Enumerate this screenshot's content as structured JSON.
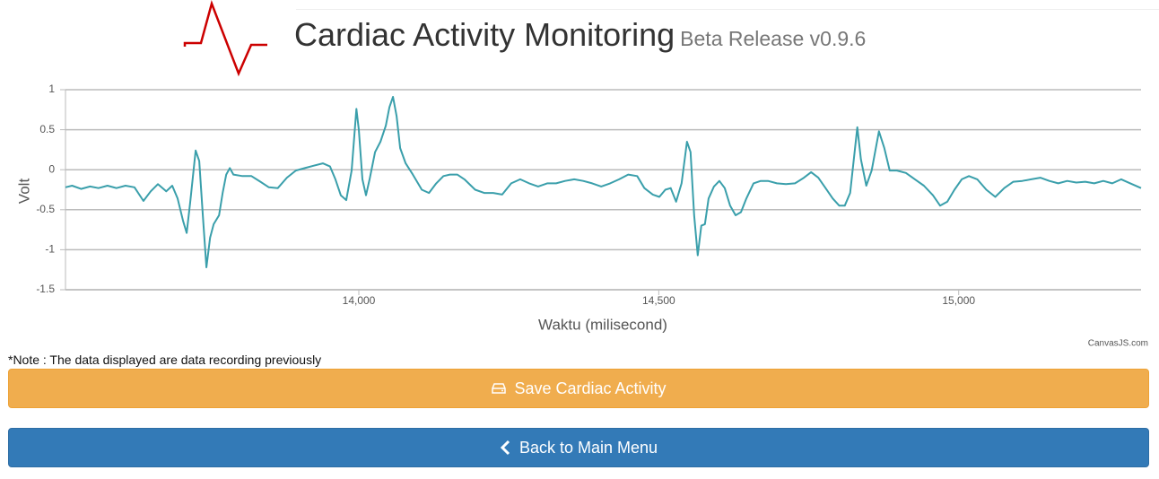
{
  "header": {
    "title": "Cardiac Activity Monitoring",
    "subtitle": "Beta Release v0.9.6"
  },
  "chart_data": {
    "type": "line",
    "y_label": "Volt",
    "x_label": "Waktu (milisecond)",
    "credit": "CanvasJS.com",
    "color": "#3a9fab",
    "grid": true,
    "xlim": [
      13511,
      15304
    ],
    "ylim": [
      -1.5,
      1
    ],
    "xticks": [
      {
        "value": 14000,
        "label": "14,000"
      },
      {
        "value": 14500,
        "label": "14,500"
      },
      {
        "value": 15000,
        "label": "15,000"
      }
    ],
    "yticks": [
      -1.5,
      -1,
      -0.5,
      0,
      0.5,
      1
    ],
    "x": [
      13511,
      13522,
      13537,
      13552,
      13566,
      13581,
      13596,
      13611,
      13626,
      13641,
      13653,
      13665,
      13679,
      13689,
      13698,
      13707,
      13713,
      13719,
      13728,
      13734,
      13740,
      13746,
      13752,
      13758,
      13767,
      13773,
      13779,
      13785,
      13791,
      13806,
      13821,
      13836,
      13850,
      13865,
      13880,
      13895,
      13910,
      13925,
      13940,
      13952,
      13961,
      13970,
      13979,
      13988,
      13996,
      14000,
      14006,
      14012,
      14018,
      14027,
      14036,
      14045,
      14051,
      14057,
      14063,
      14069,
      14078,
      14090,
      14105,
      14117,
      14129,
      14141,
      14152,
      14164,
      14176,
      14194,
      14209,
      14224,
      14239,
      14254,
      14269,
      14284,
      14299,
      14314,
      14329,
      14344,
      14359,
      14374,
      14389,
      14404,
      14419,
      14434,
      14449,
      14464,
      14476,
      14490,
      14501,
      14511,
      14520,
      14529,
      14538,
      14547,
      14553,
      14559,
      14565,
      14571,
      14577,
      14583,
      14592,
      14601,
      14610,
      14619,
      14628,
      14637,
      14646,
      14658,
      14670,
      14682,
      14697,
      14712,
      14727,
      14742,
      14754,
      14766,
      14778,
      14790,
      14801,
      14810,
      14819,
      14831,
      14837,
      14846,
      14855,
      14867,
      14876,
      14885,
      14897,
      14912,
      14927,
      14942,
      14957,
      14969,
      14981,
      14993,
      15005,
      15017,
      15031,
      15046,
      15061,
      15076,
      15091,
      15106,
      15121,
      15136,
      15151,
      15166,
      15181,
      15196,
      15211,
      15226,
      15241,
      15256,
      15271,
      15286,
      15304
    ],
    "values": [
      -0.22,
      -0.2,
      -0.24,
      -0.21,
      -0.23,
      -0.2,
      -0.23,
      -0.2,
      -0.22,
      -0.39,
      -0.27,
      -0.18,
      -0.27,
      -0.2,
      -0.36,
      -0.64,
      -0.79,
      -0.4,
      0.24,
      0.11,
      -0.57,
      -1.22,
      -0.85,
      -0.68,
      -0.57,
      -0.29,
      -0.06,
      0.02,
      -0.06,
      -0.08,
      -0.08,
      -0.15,
      -0.22,
      -0.23,
      -0.1,
      -0.01,
      0.02,
      0.05,
      0.08,
      0.04,
      -0.12,
      -0.32,
      -0.38,
      -0.01,
      0.76,
      0.5,
      -0.12,
      -0.32,
      -0.12,
      0.22,
      0.35,
      0.55,
      0.78,
      0.91,
      0.67,
      0.27,
      0.08,
      -0.06,
      -0.25,
      -0.29,
      -0.17,
      -0.08,
      -0.06,
      -0.06,
      -0.12,
      -0.25,
      -0.29,
      -0.29,
      -0.31,
      -0.17,
      -0.12,
      -0.17,
      -0.21,
      -0.17,
      -0.17,
      -0.14,
      -0.12,
      -0.14,
      -0.17,
      -0.21,
      -0.17,
      -0.12,
      -0.06,
      -0.08,
      -0.23,
      -0.31,
      -0.34,
      -0.25,
      -0.23,
      -0.4,
      -0.17,
      0.35,
      0.22,
      -0.57,
      -1.07,
      -0.7,
      -0.68,
      -0.36,
      -0.21,
      -0.14,
      -0.23,
      -0.45,
      -0.57,
      -0.53,
      -0.36,
      -0.17,
      -0.14,
      -0.14,
      -0.17,
      -0.18,
      -0.17,
      -0.1,
      -0.03,
      -0.1,
      -0.23,
      -0.36,
      -0.45,
      -0.45,
      -0.29,
      0.53,
      0.13,
      -0.2,
      -0.01,
      0.48,
      0.27,
      -0.01,
      -0.01,
      -0.04,
      -0.12,
      -0.2,
      -0.32,
      -0.45,
      -0.4,
      -0.25,
      -0.12,
      -0.08,
      -0.12,
      -0.25,
      -0.34,
      -0.23,
      -0.15,
      -0.14,
      -0.12,
      -0.1,
      -0.14,
      -0.17,
      -0.14,
      -0.16,
      -0.15,
      -0.17,
      -0.14,
      -0.17,
      -0.12,
      -0.17,
      -0.23
    ]
  },
  "note": "*Note : The data displayed are data recording previously",
  "buttons": [
    "Save Cardiac Activity",
    "Back to Main Menu"
  ]
}
